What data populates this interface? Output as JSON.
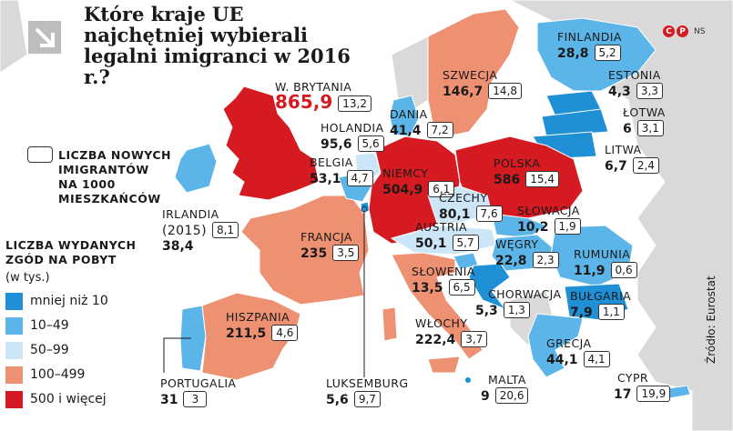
{
  "title": "Które kraje UE najchętniej wybierali legalni imigranci w 2016 r.?",
  "credit": "NS",
  "credit_marks": [
    "C",
    "P"
  ],
  "source": "Źródło: Eurostat",
  "legend": {
    "box_title": [
      "Liczba nowych",
      "imigrantów",
      "na 1000",
      "mieszkańców"
    ],
    "category_title": [
      "Liczba wydanych",
      "zgód na pobyt"
    ],
    "category_unit": "(w tys.)",
    "categories": [
      {
        "label": "mniej niż 10",
        "color": "#1f8fd6"
      },
      {
        "label": "10–49",
        "color": "#5bb5e8"
      },
      {
        "label": "50–99",
        "color": "#cde6f7"
      },
      {
        "label": "100–499",
        "color": "#ee9072"
      },
      {
        "label": "500 i więcej",
        "color": "#d61a21"
      }
    ]
  },
  "countries": {
    "wb": {
      "name": "W. Brytania",
      "value": "865,9",
      "rate": "13,2"
    },
    "irl": {
      "name": "Irlandia",
      "name2": "(2015)",
      "value": "38,4",
      "rate": "8,1"
    },
    "hol": {
      "name": "Holandia",
      "value": "95,6",
      "rate": "5,6"
    },
    "bel": {
      "name": "Belgia",
      "value": "53,1",
      "rate": "4,7"
    },
    "dan": {
      "name": "Dania",
      "value": "41,4",
      "rate": "7,2"
    },
    "szw": {
      "name": "Szwecja",
      "value": "146,7",
      "rate": "14,8"
    },
    "fin": {
      "name": "Finlandia",
      "value": "28,8",
      "rate": "5,2"
    },
    "est": {
      "name": "Estonia",
      "value": "4,3",
      "rate": "3,3"
    },
    "lot": {
      "name": "Łotwa",
      "value": "6",
      "rate": "3,1"
    },
    "lit": {
      "name": "Litwa",
      "value": "6,7",
      "rate": "2,4"
    },
    "pol": {
      "name": "Polska",
      "value": "586",
      "rate": "15,4"
    },
    "nie": {
      "name": "Niemcy",
      "value": "504,9",
      "rate": "6,1"
    },
    "cze": {
      "name": "Czechy",
      "value": "80,1",
      "rate": "7,6"
    },
    "slk": {
      "name": "Słowacja",
      "value": "10,2",
      "rate": "1,9"
    },
    "aus": {
      "name": "Austria",
      "value": "50,1",
      "rate": "5,7"
    },
    "wen": {
      "name": "Węgry",
      "value": "22,8",
      "rate": "2,3"
    },
    "rum": {
      "name": "Rumunia",
      "value": "11,9",
      "rate": "0,6"
    },
    "slo": {
      "name": "Słowenia",
      "value": "13,5",
      "rate": "6,5"
    },
    "cho": {
      "name": "Chorwacja",
      "value": "5,3",
      "rate": "1,3"
    },
    "bul": {
      "name": "Bułgaria",
      "value": "7,9",
      "rate": "1,1"
    },
    "fra": {
      "name": "Francja",
      "value": "235",
      "rate": "3,5"
    },
    "his": {
      "name": "Hiszpania",
      "value": "211,5",
      "rate": "4,6"
    },
    "por": {
      "name": "Portugalia",
      "value": "31",
      "rate": "3"
    },
    "luk": {
      "name": "Luksemburg",
      "value": "5,6",
      "rate": "9,7"
    },
    "wlo": {
      "name": "Włochy",
      "value": "222,4",
      "rate": "3,7"
    },
    "mal": {
      "name": "Malta",
      "value": "9",
      "rate": "20,6"
    },
    "gre": {
      "name": "Grecja",
      "value": "44,1",
      "rate": "4,1"
    },
    "cyp": {
      "name": "Cypr",
      "value": "17",
      "rate": "19,9"
    }
  }
}
